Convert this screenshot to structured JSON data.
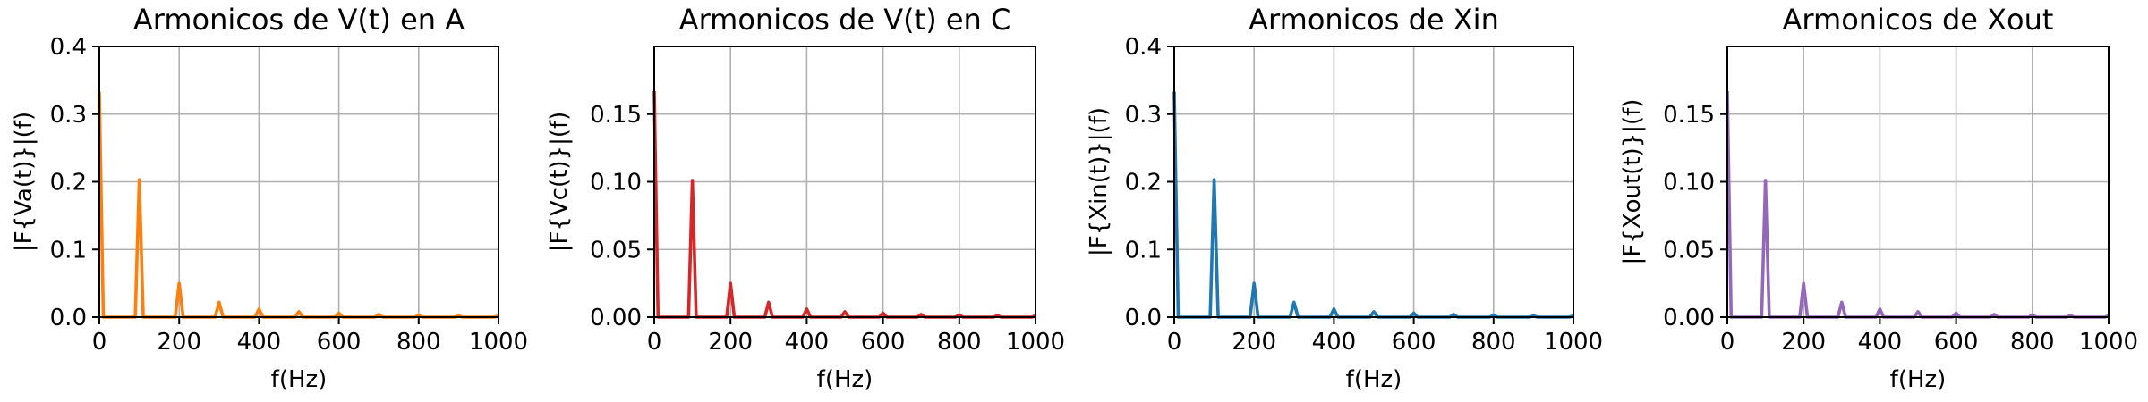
{
  "chart_data": [
    {
      "type": "line",
      "title": "Armonicos de V(t) en A",
      "xlabel": "f(Hz)",
      "ylabel": "|F{Va(t)}|(f)",
      "xlim": [
        0,
        1000
      ],
      "ylim": [
        0,
        0.4
      ],
      "xticks": [
        "0",
        "200",
        "400",
        "600",
        "800",
        "1000"
      ],
      "yticks": [
        "0.0",
        "0.1",
        "0.2",
        "0.3",
        "0.4"
      ],
      "grid": true,
      "color": "#ff7f0e",
      "x": [
        0,
        10,
        90,
        100,
        110,
        190,
        200,
        210,
        290,
        300,
        310,
        390,
        400,
        410,
        490,
        500,
        510,
        590,
        600,
        610,
        690,
        700,
        710,
        790,
        800,
        810,
        890,
        900,
        910,
        990,
        1000
      ],
      "y": [
        0.333,
        0,
        0,
        0.203,
        0,
        0,
        0.05,
        0,
        0,
        0.022,
        0,
        0,
        0.012,
        0,
        0,
        0.008,
        0,
        0,
        0.006,
        0,
        0,
        0.004,
        0,
        0,
        0.003,
        0,
        0,
        0.002,
        0,
        0,
        0.002
      ]
    },
    {
      "type": "line",
      "title": "Armonicos de V(t) en C",
      "xlabel": "f(Hz)",
      "ylabel": "|F{Vc(t)}|(f)",
      "xlim": [
        0,
        1000
      ],
      "ylim": [
        0,
        0.2
      ],
      "xticks": [
        "0",
        "200",
        "400",
        "600",
        "800",
        "1000"
      ],
      "yticks": [
        "0.00",
        "0.05",
        "0.10",
        "0.15"
      ],
      "grid": true,
      "color": "#d62728",
      "x": [
        0,
        10,
        90,
        100,
        110,
        190,
        200,
        210,
        290,
        300,
        310,
        390,
        400,
        410,
        490,
        500,
        510,
        590,
        600,
        610,
        690,
        700,
        710,
        790,
        800,
        810,
        890,
        900,
        910,
        990,
        1000
      ],
      "y": [
        0.167,
        0,
        0,
        0.101,
        0,
        0,
        0.025,
        0,
        0,
        0.011,
        0,
        0,
        0.006,
        0,
        0,
        0.004,
        0,
        0,
        0.003,
        0,
        0,
        0.002,
        0,
        0,
        0.0016,
        0,
        0,
        0.0012,
        0,
        0,
        0.001
      ]
    },
    {
      "type": "line",
      "title": "Armonicos de Xin",
      "xlabel": "f(Hz)",
      "ylabel": "|F{Xin(t)}|(f)",
      "xlim": [
        0,
        1000
      ],
      "ylim": [
        0,
        0.4
      ],
      "xticks": [
        "0",
        "200",
        "400",
        "600",
        "800",
        "1000"
      ],
      "yticks": [
        "0.0",
        "0.1",
        "0.2",
        "0.3",
        "0.4"
      ],
      "grid": true,
      "color": "#1f77b4",
      "x": [
        0,
        10,
        90,
        100,
        110,
        190,
        200,
        210,
        290,
        300,
        310,
        390,
        400,
        410,
        490,
        500,
        510,
        590,
        600,
        610,
        690,
        700,
        710,
        790,
        800,
        810,
        890,
        900,
        910,
        990,
        1000
      ],
      "y": [
        0.333,
        0,
        0,
        0.203,
        0,
        0,
        0.05,
        0,
        0,
        0.022,
        0,
        0,
        0.012,
        0,
        0,
        0.008,
        0,
        0,
        0.006,
        0,
        0,
        0.004,
        0,
        0,
        0.003,
        0,
        0,
        0.002,
        0,
        0,
        0.002
      ]
    },
    {
      "type": "line",
      "title": "Armonicos de Xout",
      "xlabel": "f(Hz)",
      "ylabel": "|F{Xout(t)}|(f)",
      "xlim": [
        0,
        1000
      ],
      "ylim": [
        0,
        0.2
      ],
      "xticks": [
        "0",
        "200",
        "400",
        "600",
        "800",
        "1000"
      ],
      "yticks": [
        "0.00",
        "0.05",
        "0.10",
        "0.15"
      ],
      "grid": true,
      "color": "#9467bd",
      "x": [
        0,
        10,
        90,
        100,
        110,
        190,
        200,
        210,
        290,
        300,
        310,
        390,
        400,
        410,
        490,
        500,
        510,
        590,
        600,
        610,
        690,
        700,
        710,
        790,
        800,
        810,
        890,
        900,
        910,
        990,
        1000
      ],
      "y": [
        0.167,
        0,
        0,
        0.101,
        0,
        0,
        0.025,
        0,
        0,
        0.011,
        0,
        0,
        0.006,
        0,
        0,
        0.004,
        0,
        0,
        0.003,
        0,
        0,
        0.002,
        0,
        0,
        0.0016,
        0,
        0,
        0.0012,
        0,
        0,
        0.001
      ]
    }
  ]
}
